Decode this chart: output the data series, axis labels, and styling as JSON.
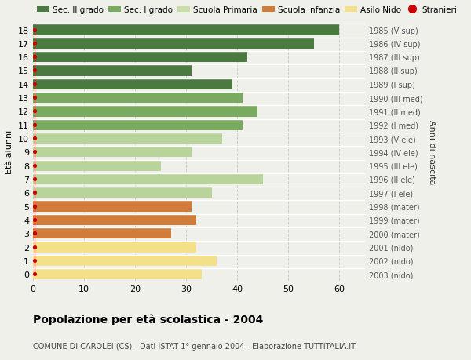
{
  "ages": [
    18,
    17,
    16,
    15,
    14,
    13,
    12,
    11,
    10,
    9,
    8,
    7,
    6,
    5,
    4,
    3,
    2,
    1,
    0
  ],
  "values": [
    60,
    55,
    42,
    31,
    39,
    41,
    44,
    41,
    37,
    31,
    25,
    45,
    35,
    31,
    32,
    27,
    32,
    36,
    33
  ],
  "right_labels": [
    "1985 (V sup)",
    "1986 (IV sup)",
    "1987 (III sup)",
    "1988 (II sup)",
    "1989 (I sup)",
    "1990 (III med)",
    "1991 (II med)",
    "1992 (I med)",
    "1993 (V ele)",
    "1994 (IV ele)",
    "1995 (III ele)",
    "1996 (II ele)",
    "1997 (I ele)",
    "1998 (mater)",
    "1999 (mater)",
    "2000 (mater)",
    "2001 (nido)",
    "2002 (nido)",
    "2003 (nido)"
  ],
  "bar_colors": [
    "#4a7a3f",
    "#4a7a3f",
    "#4a7a3f",
    "#4a7a3f",
    "#4a7a3f",
    "#7aaa5f",
    "#7aaa5f",
    "#7aaa5f",
    "#b8d49a",
    "#b8d49a",
    "#b8d49a",
    "#b8d49a",
    "#b8d49a",
    "#d17c3a",
    "#d17c3a",
    "#d17c3a",
    "#f5e08a",
    "#f5e08a",
    "#f5e08a"
  ],
  "legend_labels": [
    "Sec. II grado",
    "Sec. I grado",
    "Scuola Primaria",
    "Scuola Infanzia",
    "Asilo Nido",
    "Stranieri"
  ],
  "legend_colors": [
    "#4a7a3f",
    "#7aaa5f",
    "#c8dea8",
    "#d17c3a",
    "#f5e08a",
    "#cc0000"
  ],
  "ylabel": "Età alunni",
  "right_ylabel": "Anni di nascita",
  "title": "Popolazione per età scolastica - 2004",
  "subtitle": "COMUNE DI CAROLEI (CS) - Dati ISTAT 1° gennaio 2004 - Elaborazione TUTTITALIA.IT",
  "xlim": [
    0,
    65
  ],
  "background_color": "#f0f0eb",
  "grid_color": "#cccccc"
}
